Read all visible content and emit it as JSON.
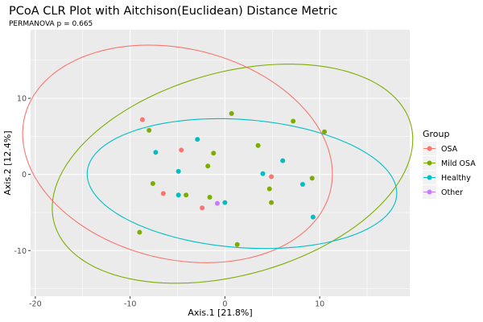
{
  "chart_data": {
    "type": "scatter",
    "title": "PCoA CLR Plot with Aitchison(Euclidean) Distance Metric",
    "subtitle": "PERMANOVA p = 0.665",
    "xlabel": "Axis.1  [21.8%]",
    "ylabel": "Axis.2  [12.4%]",
    "xlim": [
      -20.5,
      19.5
    ],
    "ylim": [
      -16,
      19
    ],
    "xticks": [
      -20,
      -10,
      0,
      10
    ],
    "yticks": [
      -10,
      0,
      10
    ],
    "xtick_labels": [
      "-20",
      "-10",
      "0",
      "10"
    ],
    "ytick_labels": [
      "-10",
      "0",
      "10"
    ],
    "legend": {
      "title": "Group",
      "position": "right"
    },
    "series": [
      {
        "name": "OSA",
        "color": "#F8766D",
        "points": [
          [
            -8.7,
            7.2
          ],
          [
            -4.6,
            3.2
          ],
          [
            -6.5,
            -2.5
          ],
          [
            -2.4,
            -4.4
          ],
          [
            4.9,
            -0.3
          ]
        ],
        "ellipse": {
          "cx": -5.0,
          "cy": 2.7,
          "rx": 17.0,
          "ry": 13.5,
          "angle": -27
        }
      },
      {
        "name": "Mild OSA",
        "color": "#7CAE00",
        "points": [
          [
            -8.0,
            5.8
          ],
          [
            0.7,
            8.0
          ],
          [
            7.2,
            7.0
          ],
          [
            10.5,
            5.6
          ],
          [
            3.5,
            3.8
          ],
          [
            -1.2,
            2.8
          ],
          [
            -1.8,
            1.1
          ],
          [
            -7.6,
            -1.2
          ],
          [
            -4.1,
            -2.7
          ],
          [
            -1.6,
            -3.0
          ],
          [
            4.7,
            -1.9
          ],
          [
            9.2,
            -0.5
          ],
          [
            4.9,
            -3.7
          ],
          [
            -9.0,
            -7.6
          ],
          [
            1.3,
            -9.2
          ]
        ],
        "ellipse": {
          "cx": 0.8,
          "cy": 0.1,
          "rx": 20.0,
          "ry": 13.0,
          "angle": 24
        }
      },
      {
        "name": "Healthy",
        "color": "#00BFC4",
        "points": [
          [
            -7.3,
            2.9
          ],
          [
            -2.9,
            4.6
          ],
          [
            -4.9,
            0.4
          ],
          [
            4.0,
            0.1
          ],
          [
            6.1,
            1.8
          ],
          [
            8.2,
            -1.3
          ],
          [
            -4.9,
            -2.7
          ],
          [
            0.0,
            -3.7
          ],
          [
            9.3,
            -5.6
          ]
        ],
        "ellipse": {
          "cx": 1.8,
          "cy": -1.2,
          "rx": 16.4,
          "ry": 8.4,
          "angle": -6
        }
      },
      {
        "name": "Other",
        "color": "#C77CFF",
        "points": [
          [
            -0.8,
            -3.8
          ]
        ],
        "ellipse": null
      }
    ]
  }
}
